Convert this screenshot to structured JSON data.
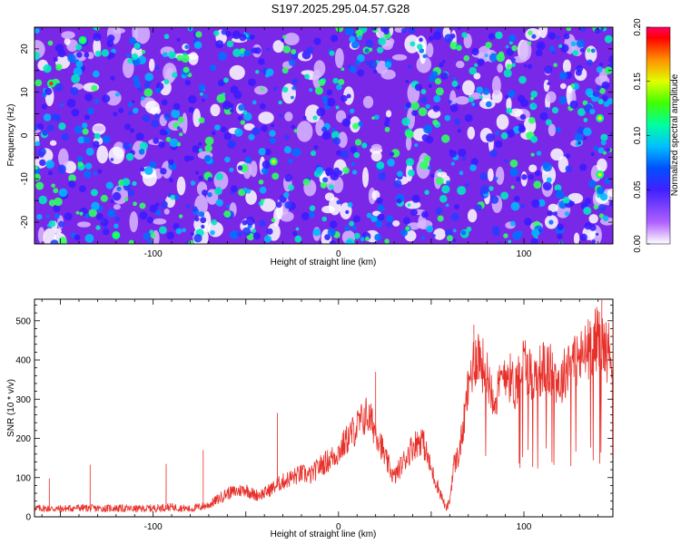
{
  "page": {
    "title": "S197.2025.295.04.57.G28"
  },
  "chart_data": [
    {
      "type": "heatmap",
      "xlabel": "Height of straight line (km)",
      "ylabel": "Frequency (Hz)",
      "xlim": [
        -164,
        148
      ],
      "ylim": [
        -25,
        25
      ],
      "x_ticks": [
        -100,
        0,
        100
      ],
      "y_ticks": [
        -20,
        -10,
        0,
        10,
        20
      ],
      "colorbar": {
        "label": "Normalized spectral amplitude",
        "range": [
          0.0,
          0.2
        ],
        "ticks": [
          "0.00",
          "0.05",
          "0.10",
          "0.15",
          "0.20"
        ],
        "colors": [
          "#ffffff",
          "#b060ff",
          "#4020ff",
          "#0050ff",
          "#00c0ff",
          "#00ffa0",
          "#40ff00",
          "#e0ff00",
          "#ff9000",
          "#ff0000",
          "#ff0060"
        ]
      },
      "description_values": "mostly low amplitude 0.02-0.08 noise with scattered peaks up to ~0.17"
    },
    {
      "type": "line",
      "xlabel": "Height of straight line (km)",
      "ylabel": "SNR (10 * v/v)",
      "xlim": [
        -164,
        148
      ],
      "ylim": [
        0,
        555
      ],
      "x_ticks": [
        -100,
        0,
        100
      ],
      "y_ticks": [
        0,
        100,
        200,
        300,
        400,
        500
      ],
      "color": "#e8302a",
      "series": [
        {
          "x": [
            -164,
            -150,
            -140,
            -130,
            -120,
            -110,
            -100,
            -90,
            -80,
            -75,
            -70,
            -65,
            -60,
            -55,
            -50,
            -45,
            -40,
            -35,
            -30,
            -25,
            -20,
            -15,
            -10,
            -5,
            0,
            5,
            10,
            15,
            18,
            22,
            25,
            30,
            35,
            40,
            45,
            50,
            55,
            58,
            60,
            62,
            65,
            68,
            70,
            72,
            75,
            80,
            85,
            90,
            95,
            100,
            105,
            110,
            115,
            120,
            125,
            130,
            135,
            140,
            145,
            148
          ],
          "y": [
            22,
            20,
            23,
            21,
            22,
            20,
            22,
            25,
            20,
            25,
            30,
            45,
            60,
            65,
            70,
            55,
            60,
            75,
            90,
            100,
            110,
            105,
            130,
            145,
            165,
            200,
            230,
            260,
            240,
            200,
            150,
            100,
            140,
            180,
            200,
            120,
            60,
            20,
            40,
            130,
            160,
            250,
            330,
            380,
            420,
            360,
            300,
            380,
            330,
            400,
            350,
            380,
            370,
            340,
            410,
            400,
            430,
            460,
            420,
            430
          ]
        }
      ],
      "spikes": [
        {
          "x": -156,
          "y": 98
        },
        {
          "x": -134,
          "y": 133
        },
        {
          "x": -93,
          "y": 135
        },
        {
          "x": -73,
          "y": 170
        },
        {
          "x": -33,
          "y": 265
        },
        {
          "x": 20,
          "y": 370
        },
        {
          "x": 73,
          "y": 490
        },
        {
          "x": 142,
          "y": 555
        }
      ]
    }
  ]
}
